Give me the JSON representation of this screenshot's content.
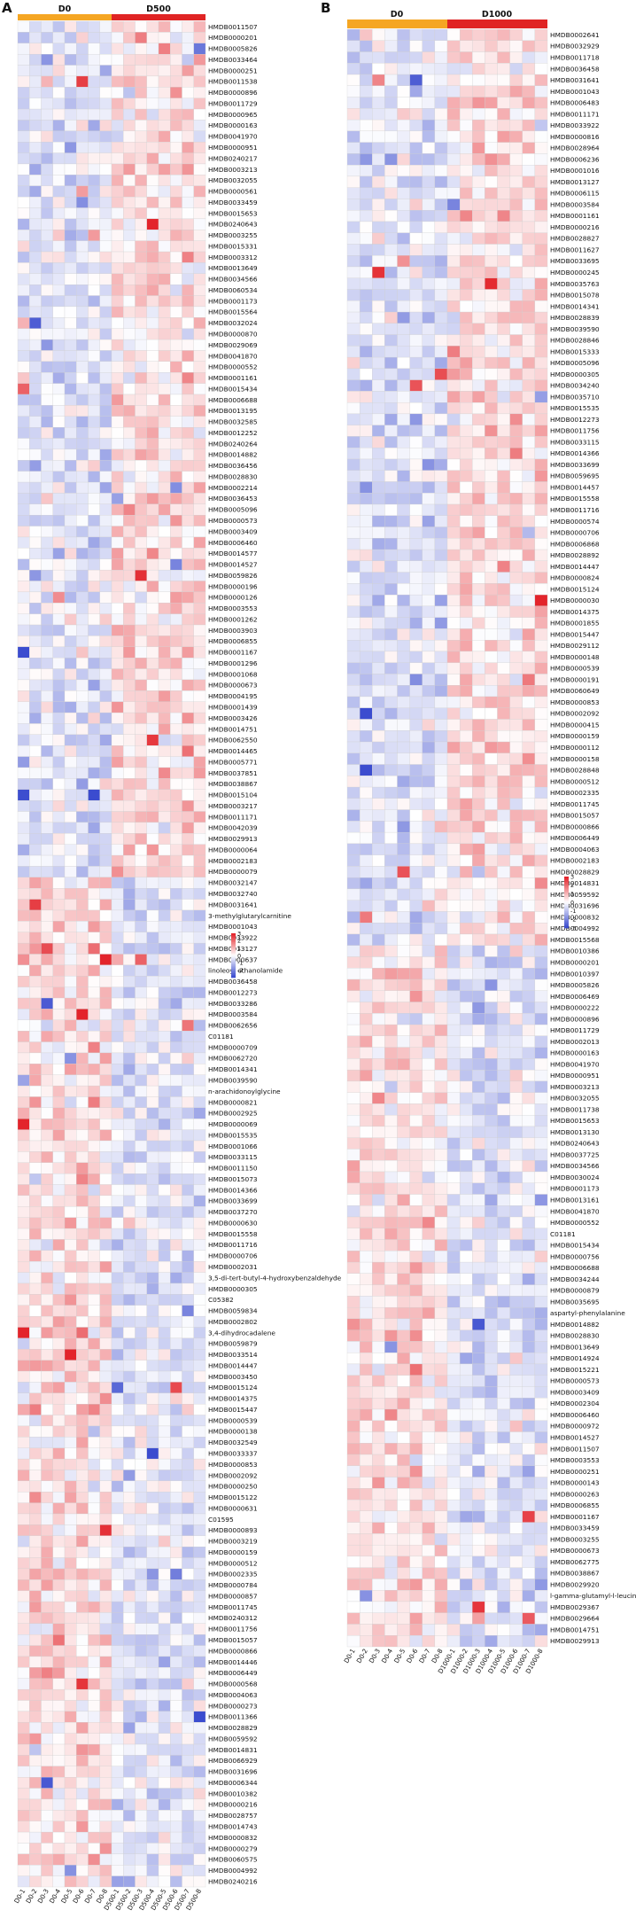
{
  "panels": [
    {
      "label": "A",
      "group1": "D0",
      "group2": "D500"
    },
    {
      "label": "B",
      "group1": "D0",
      "group2": "D1000"
    }
  ],
  "colors": {
    "group1_bar": "#f5a623",
    "group2_bar": "#e02424",
    "low": "#3b4ccf",
    "mid": "#ffffff",
    "high": "#e3242b"
  },
  "chart_data": [
    {
      "type": "heatmap",
      "panel": "A",
      "color_scale": {
        "ticks": [
          "3",
          "2",
          "1",
          "0",
          "-1",
          "-2"
        ],
        "range": [
          -2,
          3
        ]
      },
      "columns": [
        "D0-1",
        "D0-2",
        "D0-3",
        "D0-4",
        "D0-5",
        "D0-6",
        "D0-7",
        "D0-8",
        "D500-1",
        "D500-2",
        "D500-3",
        "D500-4",
        "D500-5",
        "D500-6",
        "D500-7",
        "D500-8"
      ],
      "rows": [
        "HMDB0011507",
        "HMDB0000201",
        "HMDB0005826",
        "HMDB0033464",
        "HMDB0000251",
        "HMDB0011538",
        "HMDB0000896",
        "HMDB0011729",
        "HMDB0000965",
        "HMDB0000163",
        "HMDB0041970",
        "HMDB0000951",
        "HMDB0240217",
        "HMDB0003213",
        "HMDB0032055",
        "HMDB0000561",
        "HMDB0033459",
        "HMDB0015653",
        "HMDB0240643",
        "HMDB0003255",
        "HMDB0015331",
        "HMDB0003312",
        "HMDB0013649",
        "HMDB0034566",
        "HMDB0060534",
        "HMDB0001173",
        "HMDB0015564",
        "HMDB0032024",
        "HMDB0000870",
        "HMDB0029069",
        "HMDB0041870",
        "HMDB0000552",
        "HMDB0001161",
        "HMDB0015434",
        "HMDB0006688",
        "HMDB0013195",
        "HMDB0032585",
        "HMDB0012252",
        "HMDB0240264",
        "HMDB0014882",
        "HMDB0036456",
        "HMDB0028830",
        "HMDB0002214",
        "HMDB0036453",
        "HMDB0005096",
        "HMDB0000573",
        "HMDB0003409",
        "HMDB0006460",
        "HMDB0014577",
        "HMDB0014527",
        "HMDB0059826",
        "HMDB0000196",
        "HMDB0000126",
        "HMDB0003553",
        "HMDB0001262",
        "HMDB0003903",
        "HMDB0006855",
        "HMDB0001167",
        "HMDB0001296",
        "HMDB0001068",
        "HMDB0000673",
        "HMDB0004195",
        "HMDB0001439",
        "HMDB0003426",
        "HMDB0014751",
        "HMDB0062550",
        "HMDB0014465",
        "HMDB0005771",
        "HMDB0037851",
        "HMDB0038867",
        "HMDB0015104",
        "HMDB0003217",
        "HMDB0011171",
        "HMDB0042039",
        "HMDB0029913",
        "HMDB0000064",
        "HMDB0002183",
        "HMDB0000079",
        "HMDB0032147",
        "HMDB0032740",
        "HMDB0031641",
        "3-methylglutarylcarnitine",
        "HMDB0001043",
        "HMDB0033922",
        "HMDB0013127",
        "HMDB0000637",
        "linoleoyl ethanolamide",
        "HMDB0036458",
        "HMDB0012273",
        "HMDB0033286",
        "HMDB0003584",
        "HMDB0062656",
        "C01181",
        "HMDB0000709",
        "HMDB0062720",
        "HMDB0014341",
        "HMDB0039590",
        "n-arachidonoylglycine",
        "HMDB0000821",
        "HMDB0002925",
        "HMDB0000069",
        "HMDB0015535",
        "HMDB0001066",
        "HMDB0033115",
        "HMDB0011150",
        "HMDB0015073",
        "HMDB0014366",
        "HMDB0033699",
        "HMDB0037270",
        "HMDB0000630",
        "HMDB0015558",
        "HMDB0011716",
        "HMDB0000706",
        "HMDB0002031",
        "3,5-di-tert-butyl-4-hydroxybenzaldehyde",
        "HMDB0000305",
        "C05382",
        "HMDB0059834",
        "HMDB0002802",
        "3,4-dihydrocadalene",
        "HMDB0059879",
        "HMDB0033514",
        "HMDB0014447",
        "HMDB0003450",
        "HMDB0015124",
        "HMDB0014375",
        "HMDB0015447",
        "HMDB0000539",
        "HMDB0000138",
        "HMDB0032549",
        "HMDB0033337",
        "HMDB0000853",
        "HMDB0002092",
        "HMDB0000250",
        "HMDB0015122",
        "HMDB0000631",
        "C01595",
        "HMDB0000893",
        "HMDB0003219",
        "HMDB0000159",
        "HMDB0000512",
        "HMDB0002335",
        "HMDB0000784",
        "HMDB0000857",
        "HMDB0011745",
        "HMDB0240312",
        "HMDB0011756",
        "HMDB0015057",
        "HMDB0000866",
        "HMDB0014446",
        "HMDB0006449",
        "HMDB0000568",
        "HMDB0004063",
        "HMDB0000273",
        "HMDB0011366",
        "HMDB0028829",
        "HMDB0059592",
        "HMDB0014831",
        "HMDB0066929",
        "HMDB0031696",
        "HMDB0006344",
        "HMDB0010382",
        "HMDB0000216",
        "HMDB0028757",
        "HMDB0014743",
        "HMDB0000832",
        "HMDB0000279",
        "HMDB0060575",
        "HMDB0004992",
        "HMDB0240216"
      ]
    },
    {
      "type": "heatmap",
      "panel": "B",
      "color_scale": {
        "ticks": [
          "3",
          "2",
          "1",
          "0",
          "-1",
          "-2",
          "-3"
        ],
        "range": [
          -3,
          3
        ]
      },
      "columns": [
        "D0-1",
        "D0-2",
        "D0-3",
        "D0-4",
        "D0-5",
        "D0-6",
        "D0-7",
        "D0-8",
        "D1000-1",
        "D1000-2",
        "D1000-3",
        "D1000-4",
        "D1000-5",
        "D1000-6",
        "D1000-7",
        "D1000-8"
      ],
      "rows": [
        "HMDB0002641",
        "HMDB0032929",
        "HMDB0011718",
        "HMDB0036458",
        "HMDB0031641",
        "HMDB0001043",
        "HMDB0006483",
        "HMDB0011171",
        "HMDB0033922",
        "HMDB0000816",
        "HMDB0028964",
        "HMDB0006236",
        "HMDB0001016",
        "HMDB0013127",
        "HMDB0006115",
        "HMDB0003584",
        "HMDB0001161",
        "HMDB0000216",
        "HMDB0028827",
        "HMDB0011627",
        "HMDB0033695",
        "HMDB0000245",
        "HMDB0035763",
        "HMDB0015078",
        "HMDB0014341",
        "HMDB0028839",
        "HMDB0039590",
        "HMDB0028846",
        "HMDB0015333",
        "HMDB0005096",
        "HMDB0000305",
        "HMDB0034240",
        "HMDB0035710",
        "HMDB0015535",
        "HMDB0012273",
        "HMDB0011756",
        "HMDB0033115",
        "HMDB0014366",
        "HMDB0033699",
        "HMDB0059695",
        "HMDB0014457",
        "HMDB0015558",
        "HMDB0011716",
        "HMDB0000574",
        "HMDB0000706",
        "HMDB0006868",
        "HMDB0028892",
        "HMDB0014447",
        "HMDB0000824",
        "HMDB0015124",
        "HMDB0000030",
        "HMDB0014375",
        "HMDB0001855",
        "HMDB0015447",
        "HMDB0029112",
        "HMDB0000148",
        "HMDB0000539",
        "HMDB0000191",
        "HMDB0060649",
        "HMDB0000853",
        "HMDB0002092",
        "HMDB0000415",
        "HMDB0000159",
        "HMDB0000112",
        "HMDB0000158",
        "HMDB0028848",
        "HMDB0000512",
        "HMDB0002335",
        "HMDB0011745",
        "HMDB0015057",
        "HMDB0000866",
        "HMDB0006449",
        "HMDB0004063",
        "HMDB0002183",
        "HMDB0028829",
        "HMDB0014831",
        "HMDB0059592",
        "HMDB0031696",
        "HMDB0000832",
        "HMDB0004992",
        "HMDB0015568",
        "HMDB0010386",
        "HMDB0000201",
        "HMDB0010397",
        "HMDB0005826",
        "HMDB0006469",
        "HMDB0000222",
        "HMDB0000896",
        "HMDB0011729",
        "HMDB0002013",
        "HMDB0000163",
        "HMDB0041970",
        "HMDB0000951",
        "HMDB0003213",
        "HMDB0032055",
        "HMDB0011738",
        "HMDB0015653",
        "HMDB0013130",
        "HMDB0240643",
        "HMDB0037725",
        "HMDB0034566",
        "HMDB0030024",
        "HMDB0001173",
        "HMDB0013161",
        "HMDB0041870",
        "HMDB0000552",
        "C01181",
        "HMDB0015434",
        "HMDB0000756",
        "HMDB0006688",
        "HMDB0034244",
        "HMDB0000879",
        "HMDB0035695",
        "aspartyl-phenylalanine",
        "HMDB0014882",
        "HMDB0028830",
        "HMDB0013649",
        "HMDB0014924",
        "HMDB0015221",
        "HMDB0000573",
        "HMDB0003409",
        "HMDB0002304",
        "HMDB0006460",
        "HMDB0000972",
        "HMDB0014527",
        "HMDB0011507",
        "HMDB0003553",
        "HMDB0000251",
        "HMDB0000143",
        "HMDB0000263",
        "HMDB0006855",
        "HMDB0001167",
        "HMDB0033459",
        "HMDB0003255",
        "HMDB0000673",
        "HMDB0062775",
        "HMDB0038867",
        "HMDB0029920",
        "l-gamma-glutamyl-l-leucine",
        "HMDB0029367",
        "HMDB0029664",
        "HMDB0014751",
        "HMDB0029913"
      ]
    }
  ]
}
